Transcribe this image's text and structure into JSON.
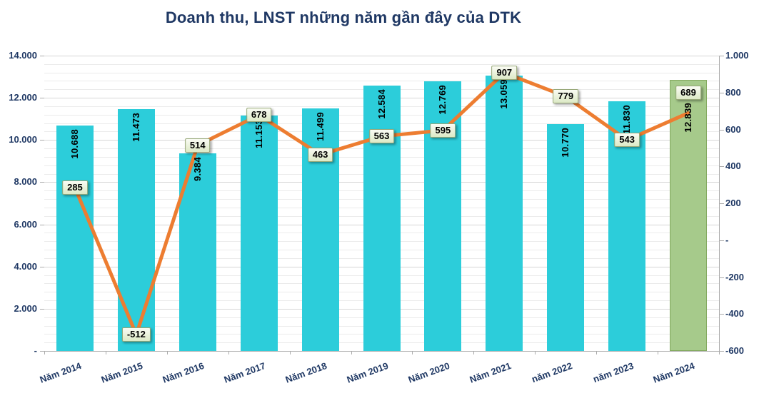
{
  "title": "Doanh thu, LNST những năm gần đây của DTK",
  "chart_data": {
    "type": "combo (bar + line)",
    "categories": [
      "Năm 2014",
      "Năm 2015",
      "Năm 2016",
      "Năm 2017",
      "Năm 2018",
      "Năm 2019",
      "Năm 2020",
      "Năm 2021",
      "năm 2022",
      "năm 2023",
      "Năm 2024"
    ],
    "series": [
      {
        "name": "Doanh thu",
        "type": "bar",
        "axis": "left",
        "values": [
          10688,
          11473,
          9384,
          11153,
          11499,
          12584,
          12769,
          13059,
          10770,
          11830,
          12839
        ],
        "labels": [
          "10.688",
          "11.473",
          "9.384",
          "11.153",
          "11.499",
          "12.584",
          "12.769",
          "13.059",
          "10.770",
          "11.830",
          "12.839"
        ]
      },
      {
        "name": "LNST",
        "type": "line",
        "axis": "right",
        "values": [
          285,
          -512,
          514,
          678,
          463,
          563,
          595,
          907,
          779,
          543,
          689
        ],
        "labels": [
          "285",
          "-512",
          "514",
          "678",
          "463",
          "563",
          "595",
          "907",
          "779",
          "543",
          "689"
        ]
      }
    ],
    "left_axis": {
      "min": 0,
      "max": 14000,
      "major": 2000,
      "minor": 400,
      "tick_labels_top_to_bottom": [
        "14.000",
        "12.000",
        "10.000",
        "8.000",
        "6.000",
        "4.000",
        "2.000",
        "-"
      ]
    },
    "right_axis": {
      "min": -600,
      "max": 1000,
      "major": 200,
      "tick_labels_top_to_bottom": [
        "1.000",
        "800",
        "600",
        "400",
        "200",
        "-",
        "-200",
        "-400",
        "-600"
      ]
    },
    "highlight_category": "Năm 2024",
    "legend": "none",
    "grid": true,
    "colors": {
      "bar": "#2CCDDA",
      "bar_highlight": "#A6CA8B",
      "bar_highlight_border": "#83A95F",
      "line": "#ED7D31",
      "axis_text": "#1F3864",
      "value_box_bg": "#E9F2D6",
      "value_box_border": "#97A878"
    }
  }
}
